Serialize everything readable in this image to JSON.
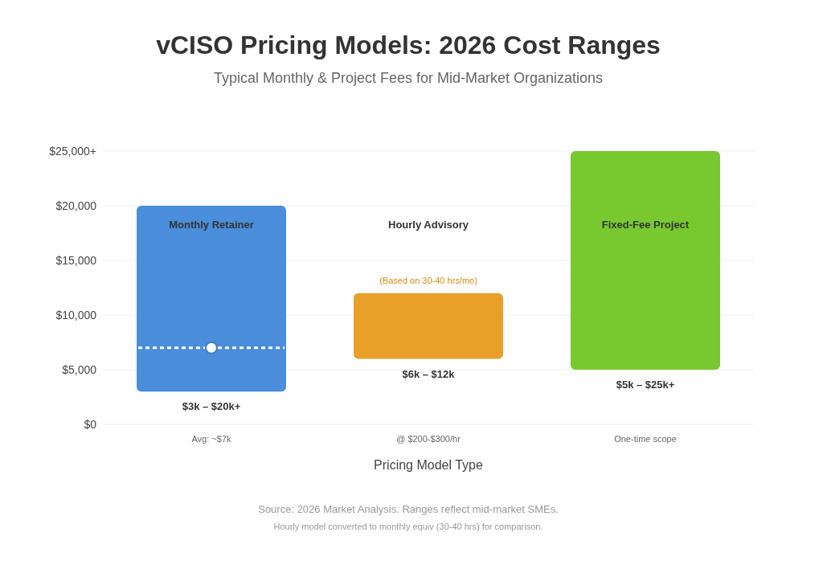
{
  "chart_data": {
    "type": "bar",
    "title": "vCISO Pricing Models: 2026 Cost Ranges",
    "subtitle": "Typical Monthly & Project Fees for Mid-Market Organizations",
    "xlabel": "Pricing Model Type",
    "categories": [
      "Monthly Retainer",
      "Hourly Advisory",
      "Fixed-Fee Project"
    ],
    "series": [
      {
        "values": [
          17000,
          6000,
          20000
        ],
        "base": [
          3000,
          6000,
          5000
        ],
        "colors": [
          "#4a8edb",
          "#e9a02a",
          "#78c92f"
        ]
      },
      {
        "type": "scatter",
        "x": [
          "Monthly Retainer"
        ],
        "values": [
          7000
        ],
        "color": "#ffffff",
        "marker": "circle"
      }
    ],
    "ylim": [
      0,
      25000
    ],
    "yticks": [
      {
        "value": 0,
        "label": "$0"
      },
      {
        "value": 5000,
        "label": "$5,000"
      },
      {
        "value": 10000,
        "label": "$10,000"
      },
      {
        "value": 15000,
        "label": "$15,000"
      },
      {
        "value": 20000,
        "label": "$20,000"
      },
      {
        "value": 25000,
        "label": "$25,000+"
      }
    ],
    "grid": "y",
    "annotations": [
      {
        "text": "(Based on 30-40 hrs/mo)",
        "x": "Hourly Advisory",
        "y": 12000
      },
      {
        "text": "$3k – $20k+",
        "x": "Monthly Retainer",
        "y": 3000
      },
      {
        "text": "$6k – $12k",
        "x": "Hourly Advisory",
        "y": 6000
      },
      {
        "text": "$5k – $25k+",
        "x": "Fixed-Fee Project",
        "y": 5000
      },
      "Avg: ~$7k",
      "@ $200-$300/hr",
      "One-time scope",
      "Source: 2026 Market Analysis. Ranges reflect mid-market SMEs.",
      "Hourly model converted to monthly equiv (30-40 hrs) for comparison."
    ]
  }
}
